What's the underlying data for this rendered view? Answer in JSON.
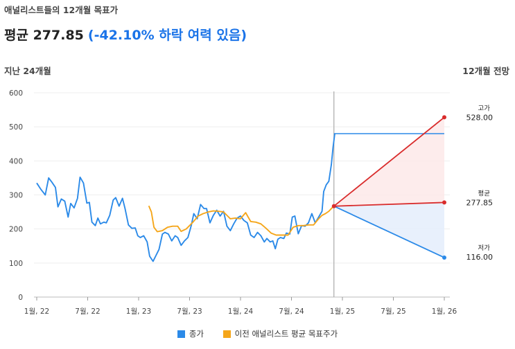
{
  "header": {
    "subtitle": "애널리스트들의 12개월 목표가",
    "headline": "평균 277.85",
    "change": "(-42.10% 하락 여력 있음)"
  },
  "labels": {
    "past": "지난 24개월",
    "forecast": "12개월 전망"
  },
  "colors": {
    "price": "#2b8ae8",
    "prior_target": "#f5a61a",
    "forecast": "#d92c2c",
    "low_fill": "#e5eefc",
    "high_fill": "#fde9e9",
    "divider": "#aaaaaa"
  },
  "chart_data": {
    "type": "line",
    "ylim": [
      0,
      600
    ],
    "yticks": [
      0,
      100,
      200,
      300,
      400,
      500,
      600
    ],
    "xticks": [
      "1월, 22",
      "7월, 22",
      "1월, 23",
      "7월, 23",
      "1월, 24",
      "7월, 24",
      "1월, 25",
      "7월, 25",
      "1월, 26"
    ],
    "series": [
      {
        "name": "종가",
        "points": [
          [
            0,
            335
          ],
          [
            0.25,
            316
          ],
          [
            0.5,
            300
          ],
          [
            0.7,
            350
          ],
          [
            0.9,
            337
          ],
          [
            1.1,
            322
          ],
          [
            1.25,
            265
          ],
          [
            1.45,
            288
          ],
          [
            1.65,
            282
          ],
          [
            1.85,
            235
          ],
          [
            2.0,
            275
          ],
          [
            2.2,
            262
          ],
          [
            2.4,
            290
          ],
          [
            2.55,
            352
          ],
          [
            2.75,
            335
          ],
          [
            2.95,
            276
          ],
          [
            3.1,
            278
          ],
          [
            3.25,
            220
          ],
          [
            3.45,
            210
          ],
          [
            3.6,
            232
          ],
          [
            3.75,
            215
          ],
          [
            3.95,
            220
          ],
          [
            4.1,
            218
          ],
          [
            4.3,
            240
          ],
          [
            4.5,
            285
          ],
          [
            4.65,
            292
          ],
          [
            4.85,
            267
          ],
          [
            5.05,
            290
          ],
          [
            5.2,
            260
          ],
          [
            5.4,
            212
          ],
          [
            5.6,
            202
          ],
          [
            5.8,
            203
          ],
          [
            5.95,
            180
          ],
          [
            6.1,
            175
          ],
          [
            6.3,
            180
          ],
          [
            6.5,
            162
          ],
          [
            6.65,
            120
          ],
          [
            6.85,
            105
          ],
          [
            7.0,
            120
          ],
          [
            7.2,
            140
          ],
          [
            7.4,
            185
          ],
          [
            7.55,
            190
          ],
          [
            7.75,
            185
          ],
          [
            7.95,
            165
          ],
          [
            8.15,
            180
          ],
          [
            8.3,
            175
          ],
          [
            8.5,
            152
          ],
          [
            8.7,
            165
          ],
          [
            8.9,
            175
          ],
          [
            9.1,
            210
          ],
          [
            9.25,
            245
          ],
          [
            9.45,
            230
          ],
          [
            9.65,
            272
          ],
          [
            9.85,
            260
          ],
          [
            10.0,
            260
          ],
          [
            10.2,
            218
          ],
          [
            10.4,
            240
          ],
          [
            10.6,
            255
          ],
          [
            10.8,
            238
          ],
          [
            11.0,
            252
          ],
          [
            11.2,
            208
          ],
          [
            11.4,
            195
          ],
          [
            11.6,
            215
          ],
          [
            11.8,
            232
          ],
          [
            12.0,
            238
          ],
          [
            12.2,
            225
          ],
          [
            12.4,
            218
          ],
          [
            12.6,
            182
          ],
          [
            12.8,
            175
          ],
          [
            13.0,
            190
          ],
          [
            13.2,
            180
          ],
          [
            13.4,
            162
          ],
          [
            13.55,
            172
          ],
          [
            13.75,
            162
          ],
          [
            13.9,
            165
          ],
          [
            14.05,
            142
          ],
          [
            14.2,
            170
          ],
          [
            14.35,
            175
          ],
          [
            14.55,
            172
          ],
          [
            14.7,
            188
          ],
          [
            14.9,
            185
          ],
          [
            15.05,
            235
          ],
          [
            15.2,
            238
          ],
          [
            15.4,
            186
          ],
          [
            15.6,
            210
          ],
          [
            15.8,
            208
          ],
          [
            16.0,
            218
          ],
          [
            16.2,
            245
          ],
          [
            16.4,
            218
          ],
          [
            16.6,
            235
          ],
          [
            16.8,
            252
          ],
          [
            16.9,
            310
          ],
          [
            17.05,
            330
          ],
          [
            17.2,
            340
          ],
          [
            17.35,
            390
          ],
          [
            17.45,
            440
          ],
          [
            17.55,
            480
          ]
        ]
      },
      {
        "name": "이전 애널리스트 평균 목표주가",
        "points": [
          [
            6.6,
            268
          ],
          [
            6.75,
            250
          ],
          [
            6.9,
            205
          ],
          [
            7.1,
            192
          ],
          [
            7.4,
            195
          ],
          [
            7.7,
            205
          ],
          [
            8.0,
            208
          ],
          [
            8.3,
            208
          ],
          [
            8.5,
            193
          ],
          [
            8.8,
            200
          ],
          [
            9.2,
            220
          ],
          [
            9.5,
            238
          ],
          [
            9.8,
            245
          ],
          [
            10.1,
            250
          ],
          [
            10.4,
            253
          ],
          [
            10.7,
            252
          ],
          [
            11.0,
            250
          ],
          [
            11.2,
            240
          ],
          [
            11.4,
            230
          ],
          [
            11.7,
            232
          ],
          [
            12.0,
            230
          ],
          [
            12.3,
            248
          ],
          [
            12.6,
            222
          ],
          [
            12.9,
            220
          ],
          [
            13.2,
            215
          ],
          [
            13.5,
            202
          ],
          [
            13.8,
            188
          ],
          [
            14.1,
            182
          ],
          [
            14.4,
            182
          ],
          [
            14.8,
            182
          ],
          [
            15.1,
            205
          ],
          [
            15.4,
            210
          ],
          [
            15.7,
            210
          ],
          [
            16.0,
            212
          ],
          [
            16.3,
            212
          ],
          [
            16.6,
            230
          ],
          [
            16.8,
            240
          ],
          [
            17.0,
            245
          ],
          [
            17.2,
            252
          ],
          [
            17.35,
            260
          ],
          [
            17.5,
            268
          ]
        ]
      }
    ],
    "forecast": {
      "start": [
        17.5,
        267
      ],
      "last_close_hold": 480,
      "end_x": 24,
      "high": {
        "label": "고가",
        "value": 528.0,
        "value_text": "528.00"
      },
      "average": {
        "label": "평균",
        "value": 277.85,
        "value_text": "277.85"
      },
      "low": {
        "label": "저가",
        "value": 116.0,
        "value_text": "116.00"
      }
    }
  },
  "legend": [
    {
      "label": "종가",
      "color": "#2b8ae8"
    },
    {
      "label": "이전 애널리스트 평균 목표주가",
      "color": "#f5a61a"
    }
  ]
}
